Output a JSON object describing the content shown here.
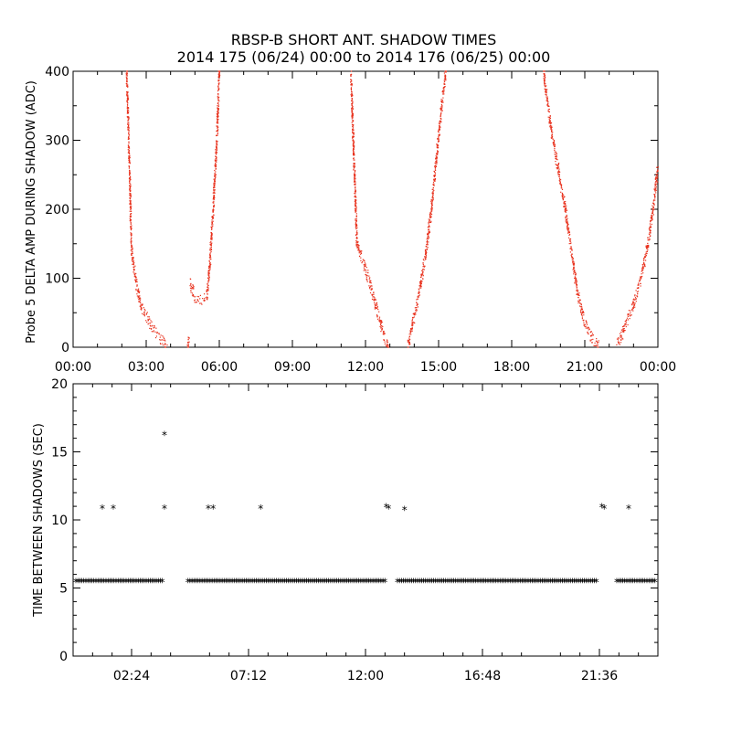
{
  "figure": {
    "title_line1": "RBSP-B SHORT ANT. SHADOW TIMES",
    "title_line2": "2014 175 (06/24) 00:00 to 2014 176 (06/25) 00:00"
  },
  "chart_data": [
    {
      "type": "scatter",
      "title": "",
      "ylabel": "Probe 5 DELTA AMP DURING SHADOW (ADC)",
      "xlabel": "",
      "xlim_hours": [
        0,
        24
      ],
      "ylim": [
        0,
        400
      ],
      "x_ticks": [
        "00:00",
        "03:00",
        "06:00",
        "09:00",
        "12:00",
        "15:00",
        "18:00",
        "21:00",
        "00:00"
      ],
      "x_tick_hours": [
        0,
        3,
        6,
        9,
        12,
        15,
        18,
        21,
        24
      ],
      "y_ticks": [
        0,
        100,
        200,
        300,
        400
      ],
      "color": "#e8321e",
      "segments": [
        {
          "points": [
            [
              2.2,
              400
            ],
            [
              2.3,
              280
            ],
            [
              2.4,
              140
            ],
            [
              2.6,
              90
            ],
            [
              2.8,
              58
            ],
            [
              3.1,
              38
            ],
            [
              3.4,
              20
            ],
            [
              3.7,
              8
            ],
            [
              3.85,
              0
            ]
          ]
        },
        {
          "points": [
            [
              4.7,
              0
            ],
            [
              4.75,
              12
            ]
          ]
        },
        {
          "points": [
            [
              4.8,
              95
            ],
            [
              5.0,
              72
            ],
            [
              5.3,
              68
            ],
            [
              5.5,
              75
            ],
            [
              5.6,
              115
            ],
            [
              5.75,
              200
            ],
            [
              5.9,
              300
            ],
            [
              6.0,
              400
            ]
          ]
        },
        {
          "points": [
            [
              11.4,
              400
            ],
            [
              11.5,
              300
            ],
            [
              11.65,
              150
            ],
            [
              11.9,
              125
            ],
            [
              12.2,
              90
            ],
            [
              12.5,
              50
            ],
            [
              12.8,
              12
            ],
            [
              12.95,
              0
            ]
          ]
        },
        {
          "points": [
            [
              13.75,
              0
            ],
            [
              13.9,
              30
            ],
            [
              14.1,
              60
            ],
            [
              14.3,
              100
            ],
            [
              14.5,
              140
            ],
            [
              14.7,
              200
            ],
            [
              14.9,
              270
            ],
            [
              15.1,
              340
            ],
            [
              15.3,
              400
            ]
          ]
        },
        {
          "points": [
            [
              19.3,
              400
            ],
            [
              19.6,
              320
            ],
            [
              19.9,
              260
            ],
            [
              20.2,
              200
            ],
            [
              20.45,
              140
            ],
            [
              20.7,
              80
            ],
            [
              21.0,
              35
            ],
            [
              21.3,
              12
            ],
            [
              21.6,
              0
            ]
          ]
        },
        {
          "points": [
            [
              22.3,
              0
            ],
            [
              22.5,
              15
            ],
            [
              22.75,
              40
            ],
            [
              23.0,
              60
            ],
            [
              23.3,
              100
            ],
            [
              23.6,
              150
            ],
            [
              23.8,
              200
            ],
            [
              24.0,
              260
            ]
          ]
        }
      ]
    },
    {
      "type": "scatter",
      "title": "",
      "ylabel": "TIME BETWEEN SHADOWS (SEC)",
      "xlabel": "",
      "xlim_hours": [
        0,
        24
      ],
      "ylim": [
        0,
        20
      ],
      "x_ticks": [
        "02:24",
        "07:12",
        "12:00",
        "16:48",
        "21:36"
      ],
      "x_tick_hours": [
        2.4,
        7.2,
        12.0,
        16.8,
        21.6
      ],
      "y_ticks": [
        0,
        5,
        10,
        15,
        20
      ],
      "marker": "*",
      "color": "#000000",
      "baseline_value": 5.4,
      "baseline_ranges_hours": [
        [
          0.0,
          3.85
        ],
        [
          4.6,
          12.95
        ],
        [
          13.2,
          21.6
        ],
        [
          22.2,
          24.0
        ]
      ],
      "points": [
        {
          "x": 1.2,
          "y": 10.8
        },
        {
          "x": 1.65,
          "y": 10.8
        },
        {
          "x": 3.75,
          "y": 16.2
        },
        {
          "x": 3.75,
          "y": 10.8
        },
        {
          "x": 5.55,
          "y": 10.8
        },
        {
          "x": 5.75,
          "y": 10.8
        },
        {
          "x": 7.7,
          "y": 10.8
        },
        {
          "x": 12.85,
          "y": 10.9
        },
        {
          "x": 12.95,
          "y": 10.8
        },
        {
          "x": 13.6,
          "y": 10.7
        },
        {
          "x": 21.7,
          "y": 10.9
        },
        {
          "x": 21.8,
          "y": 10.8
        },
        {
          "x": 22.8,
          "y": 10.8
        }
      ]
    }
  ]
}
